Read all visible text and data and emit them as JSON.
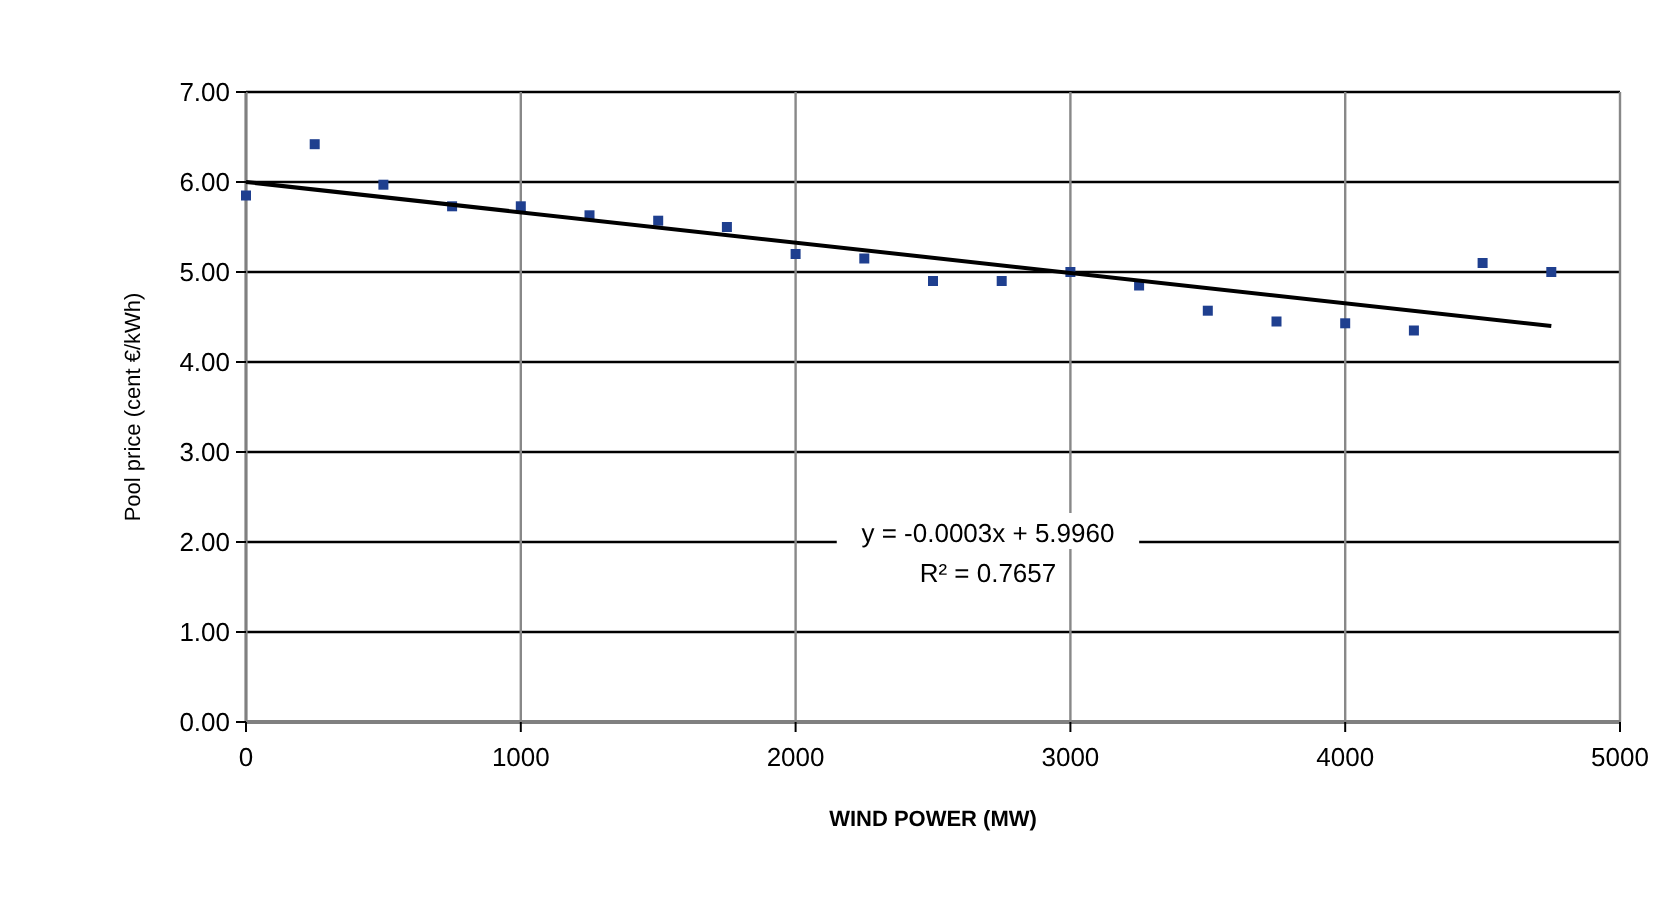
{
  "chart_data": {
    "type": "scatter",
    "xlabel": "WIND POWER (MW)",
    "ylabel": "Pool price (cent €/kWh)",
    "grid": true,
    "xlim": [
      0,
      5000
    ],
    "xticks": [
      0,
      1000,
      2000,
      3000,
      4000,
      5000
    ],
    "ylim": [
      0,
      7
    ],
    "yticks": [
      {
        "value": 0,
        "label": "0.00"
      },
      {
        "value": 1,
        "label": "1.00"
      },
      {
        "value": 2,
        "label": "2.00"
      },
      {
        "value": 3,
        "label": "3.00"
      },
      {
        "value": 4,
        "label": "4.00"
      },
      {
        "value": 5,
        "label": "5.00"
      },
      {
        "value": 6,
        "label": "6.00"
      },
      {
        "value": 7,
        "label": "7.00"
      }
    ],
    "series": [
      {
        "color": "#1f3f8f",
        "marker": "square",
        "x": [
          0,
          250,
          500,
          750,
          1000,
          1250,
          1500,
          1750,
          2000,
          2250,
          2500,
          2750,
          3000,
          3250,
          3500,
          3750,
          4000,
          4250,
          4500,
          4750
        ],
        "values": [
          5.85,
          6.42,
          5.97,
          5.73,
          5.73,
          5.63,
          5.57,
          5.5,
          5.2,
          5.15,
          4.9,
          4.9,
          5.0,
          4.85,
          4.57,
          4.45,
          4.43,
          4.35,
          5.1,
          5.0
        ]
      },
      {
        "type": "line",
        "color": "#000000",
        "marker": "none",
        "x": [
          0,
          4750
        ],
        "values": [
          6.0,
          4.4
        ]
      }
    ],
    "annotations": [
      "y = -0.0003x + 5.9960",
      "R² = 0.7657"
    ]
  }
}
